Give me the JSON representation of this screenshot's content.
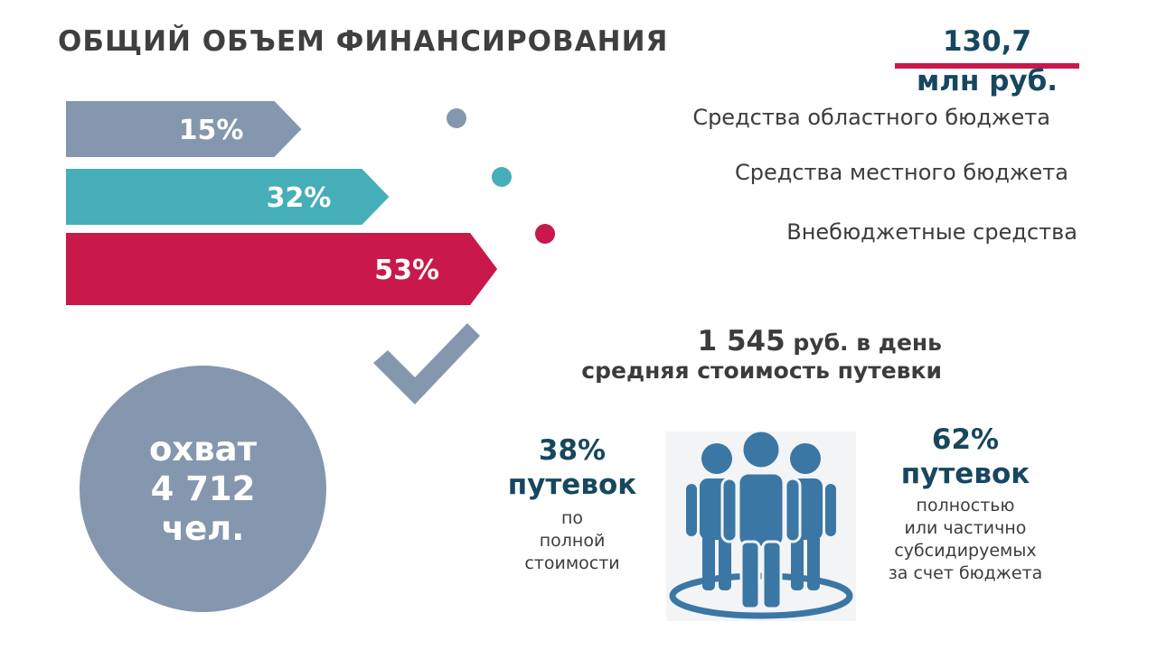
{
  "title": "ОБЩИЙ ОБЪЕМ ФИНАНСИРОВАНИЯ",
  "total": {
    "value": "130,7",
    "unit": "млн руб."
  },
  "chart_data": {
    "type": "bar",
    "orientation": "horizontal",
    "title": "ОБЩИЙ ОБЪЕМ ФИНАНСИРОВАНИЯ",
    "categories": [
      "Средства областного бюджета",
      "Средства местного бюджета",
      "Внебюджетные средства"
    ],
    "values": [
      15,
      32,
      53
    ],
    "value_labels": [
      "15%",
      "32%",
      "53%"
    ],
    "colors": [
      "#8597ae",
      "#45aeb8",
      "#c8194a"
    ],
    "legend": "right"
  },
  "cost": {
    "amount": "1 545",
    "unit": "руб. в день",
    "caption": "средняя стоимость путевки"
  },
  "coverage": {
    "line1": "охват",
    "line2": "4 712",
    "line3": "чел."
  },
  "trips_full": {
    "percent": "38%",
    "noun": "путевок",
    "desc": [
      "по",
      "полной",
      "стоимости"
    ]
  },
  "trips_subsidized": {
    "percent": "62%",
    "noun": "путевок",
    "desc": [
      "полностью",
      "или частично",
      "субсидируемых",
      "за счет бюджета"
    ]
  },
  "icons": {
    "checkmark": "checkmark-icon",
    "people": "people-group-icon"
  },
  "colors": {
    "accent": "#c8194a",
    "heading": "#17475f",
    "muted": "#8597ae",
    "people": "#3b77a4"
  }
}
